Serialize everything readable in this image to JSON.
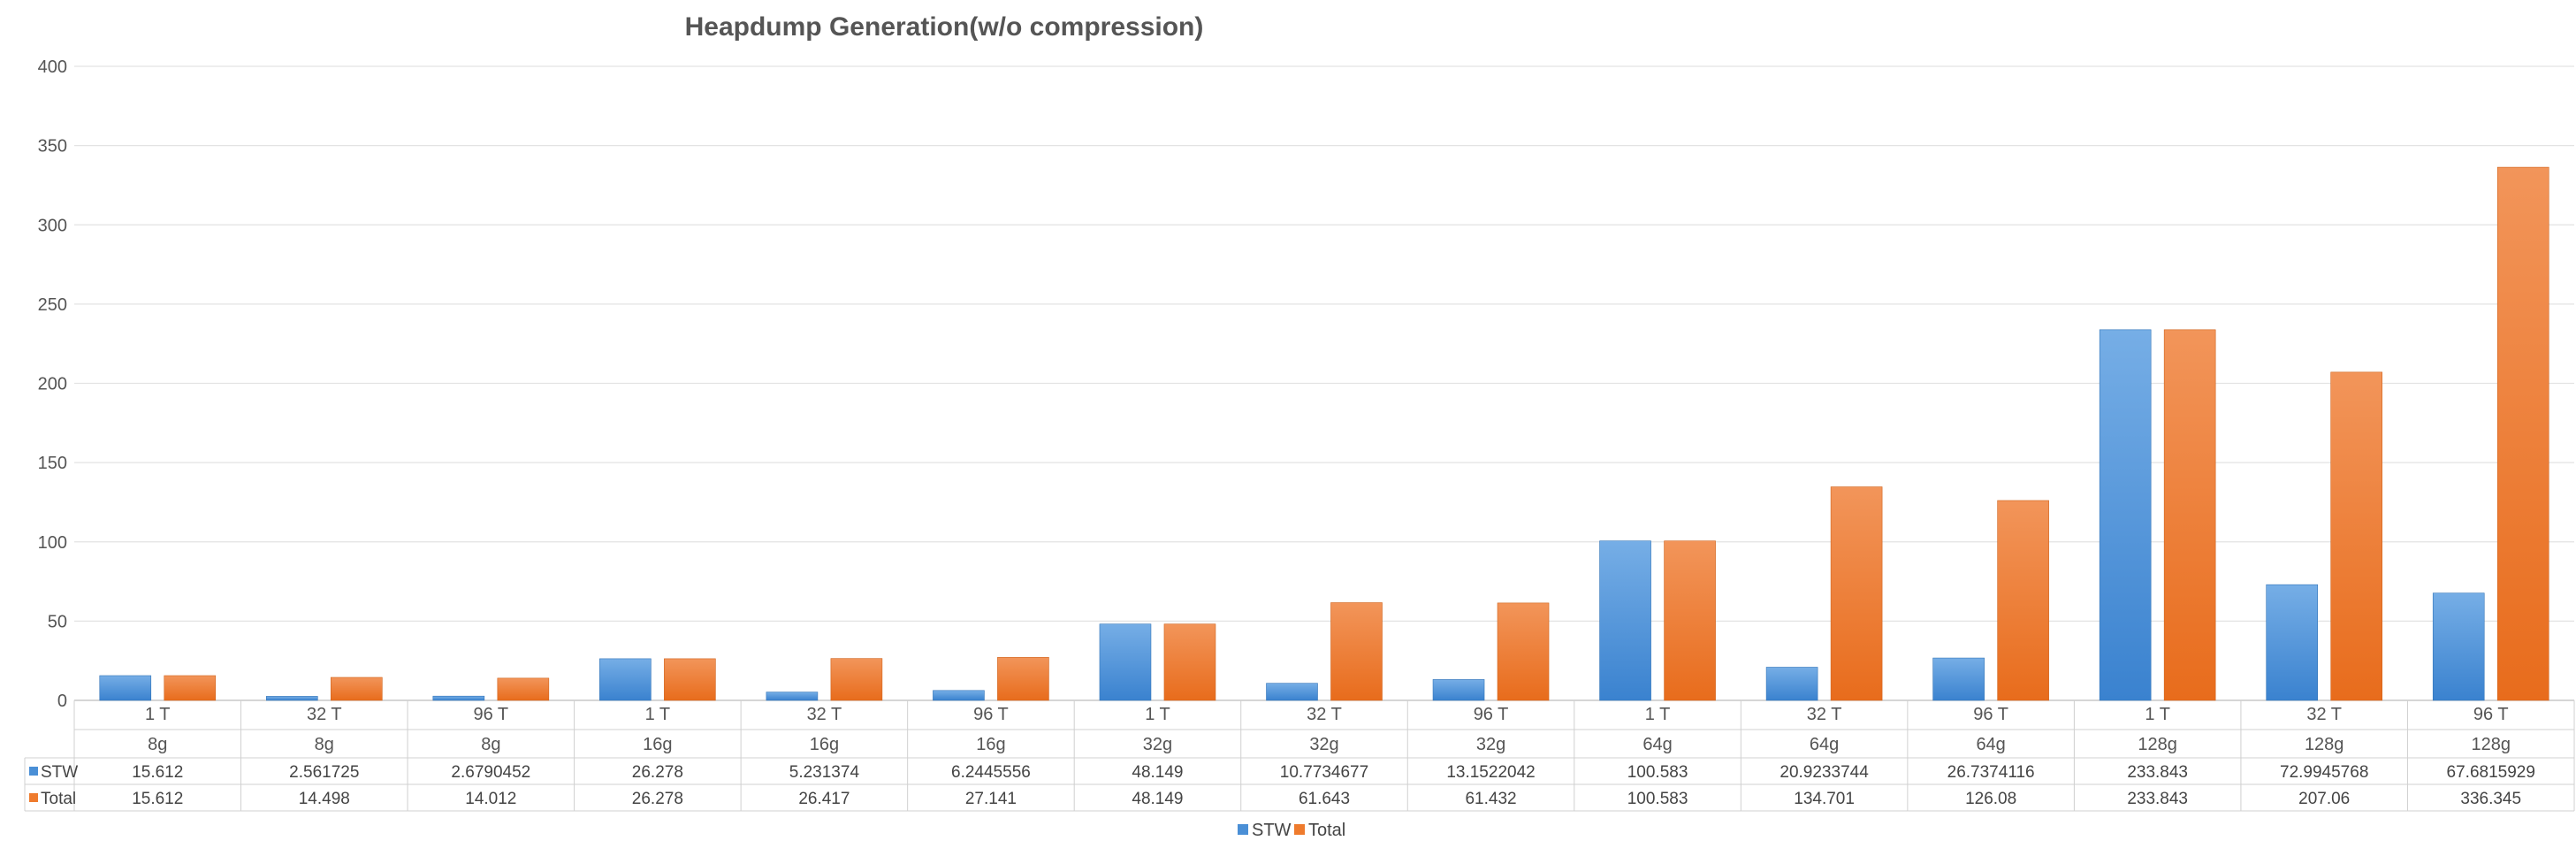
{
  "chart_data": {
    "type": "bar",
    "title": "Heapdump Generation(w/o compression)",
    "xlabel": "",
    "ylabel": "",
    "ylim": [
      0,
      400
    ],
    "yticks": [
      "0",
      "50",
      "100",
      "150",
      "200",
      "250",
      "300",
      "350",
      "400"
    ],
    "grid": true,
    "legend_position": "bottom",
    "categories_level1": [
      "1 T",
      "32 T",
      "96 T",
      "1 T",
      "32 T",
      "96 T",
      "1 T",
      "32 T",
      "96 T",
      "1 T",
      "32 T",
      "96 T",
      "1 T",
      "32 T",
      "96 T"
    ],
    "categories_level2": [
      "8g",
      "8g",
      "8g",
      "16g",
      "16g",
      "16g",
      "32g",
      "32g",
      "32g",
      "64g",
      "64g",
      "64g",
      "128g",
      "128g",
      "128g"
    ],
    "series": [
      {
        "name": "STW",
        "color": "#4a8fd6",
        "values": [
          15.612,
          2.561725,
          2.6790452,
          26.278,
          5.231374,
          6.2445556,
          48.149,
          10.7734677,
          13.1522042,
          100.583,
          20.9233744,
          26.7374116,
          233.843,
          72.9945768,
          67.6815929
        ],
        "labels": [
          "15.612",
          "2.561725",
          "2.6790452",
          "26.278",
          "5.231374",
          "6.2445556",
          "48.149",
          "10.7734677",
          "13.1522042",
          "100.583",
          "20.9233744",
          "26.7374116",
          "233.843",
          "72.9945768",
          "67.6815929"
        ]
      },
      {
        "name": "Total",
        "color": "#ef7b2d",
        "values": [
          15.612,
          14.498,
          14.012,
          26.278,
          26.417,
          27.141,
          48.149,
          61.643,
          61.432,
          100.583,
          134.701,
          126.08,
          233.843,
          207.06,
          336.345
        ],
        "labels": [
          "15.612",
          "14.498",
          "14.012",
          "26.278",
          "26.417",
          "27.141",
          "48.149",
          "61.643",
          "61.432",
          "100.583",
          "134.701",
          "126.08",
          "233.843",
          "207.06",
          "336.345"
        ]
      }
    ]
  }
}
